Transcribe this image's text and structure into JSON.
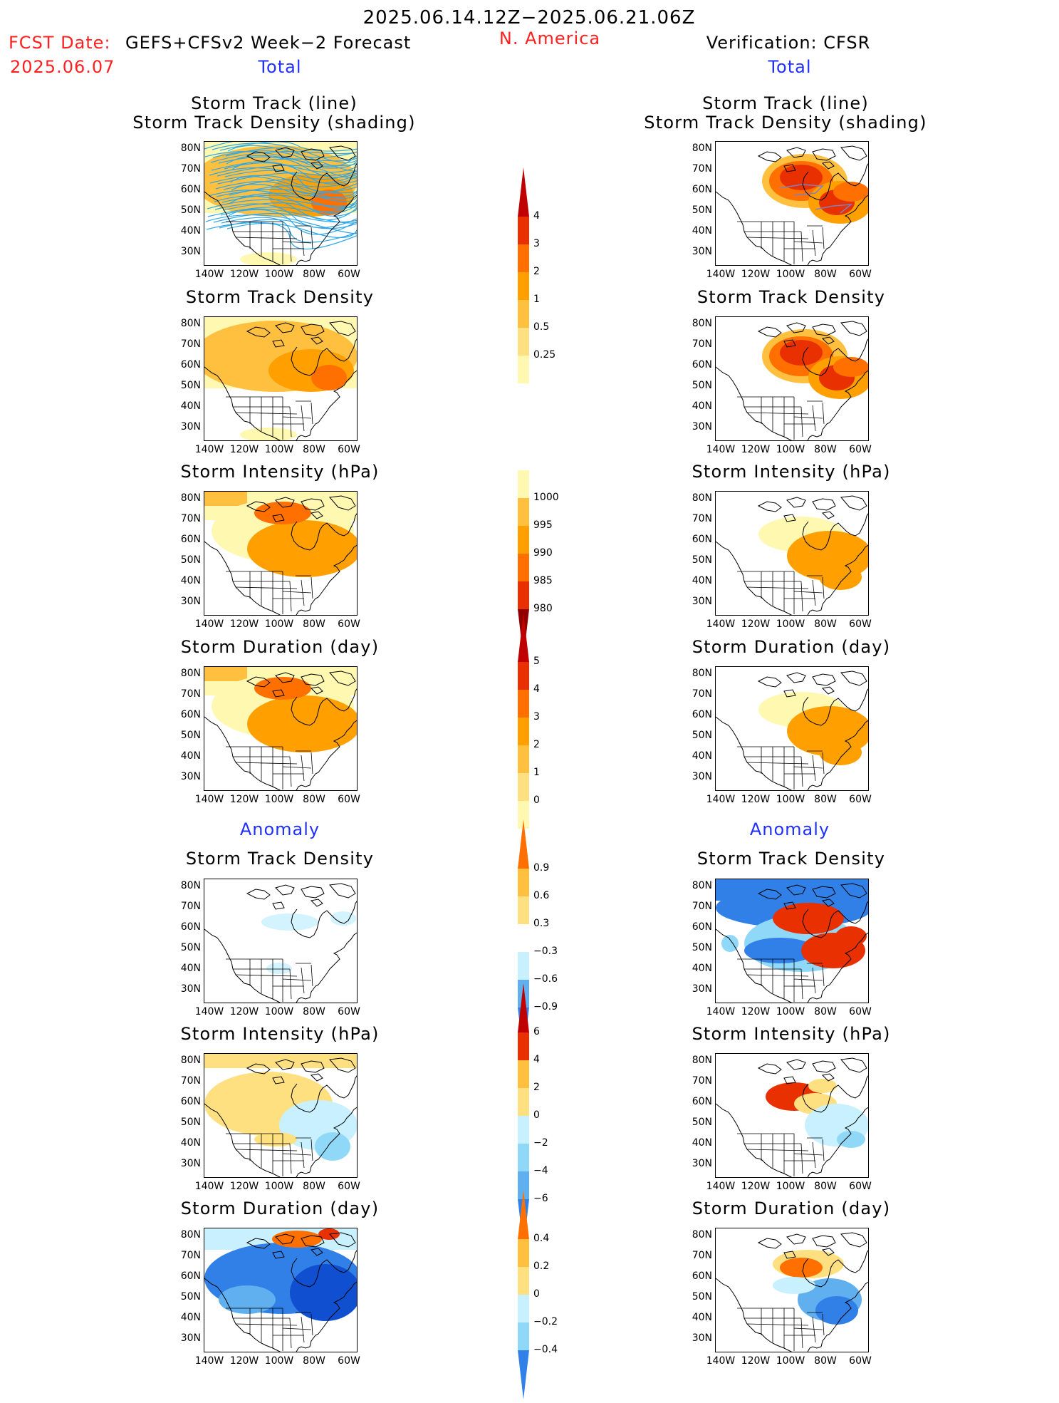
{
  "header": {
    "period": "2025.06.14.12Z−2025.06.21.06Z",
    "fcst_label": "FCST Date:",
    "fcst_model": "GEFS+CFSv2 Week−2 Forecast",
    "fcst_date": "2025.06.07",
    "region": "N. America",
    "verification": "Verification: CFSR"
  },
  "sections": {
    "total_left": "Total",
    "total_right": "Total",
    "anomaly_left": "Anomaly",
    "anomaly_right": "Anomaly"
  },
  "panel_titles": {
    "track_line": "Storm Track (line)",
    "track_density_shading": "Storm Track Density (shading)",
    "track_density": "Storm Track Density",
    "intensity": "Storm Intensity (hPa)",
    "duration": "Storm Duration (day)"
  },
  "axes": {
    "lat_labels": [
      "80N",
      "70N",
      "60N",
      "50N",
      "40N",
      "30N"
    ],
    "lon_labels": [
      "140W",
      "120W",
      "100W",
      "80W",
      "60W"
    ]
  },
  "colorbars": {
    "track_density_total": [
      "4",
      "3",
      "2",
      "1",
      "0.5",
      "0.25"
    ],
    "intensity_total": [
      "1000",
      "995",
      "990",
      "985",
      "980"
    ],
    "duration_total": [
      "5",
      "4",
      "3",
      "2",
      "1",
      "0"
    ],
    "track_density_anom": [
      "0.9",
      "0.6",
      "0.3",
      "−0.3",
      "−0.6",
      "−0.9"
    ],
    "intensity_anom": [
      "6",
      "4",
      "2",
      "0",
      "−2",
      "−4",
      "−6"
    ],
    "duration_anom": [
      "0.4",
      "0.2",
      "0",
      "−0.2",
      "−0.4"
    ]
  },
  "colors": {
    "warm": [
      "#fff8b0",
      "#ffe080",
      "#ffc040",
      "#ffa000",
      "#ff7000",
      "#e83000",
      "#c00000",
      "#900000"
    ],
    "cool": [
      "#c8f0ff",
      "#90d8f8",
      "#60b0f0",
      "#3080e8",
      "#1050d0"
    ],
    "track_line_fcst": "#30a8e8",
    "track_line_obs": "#8080c0"
  }
}
